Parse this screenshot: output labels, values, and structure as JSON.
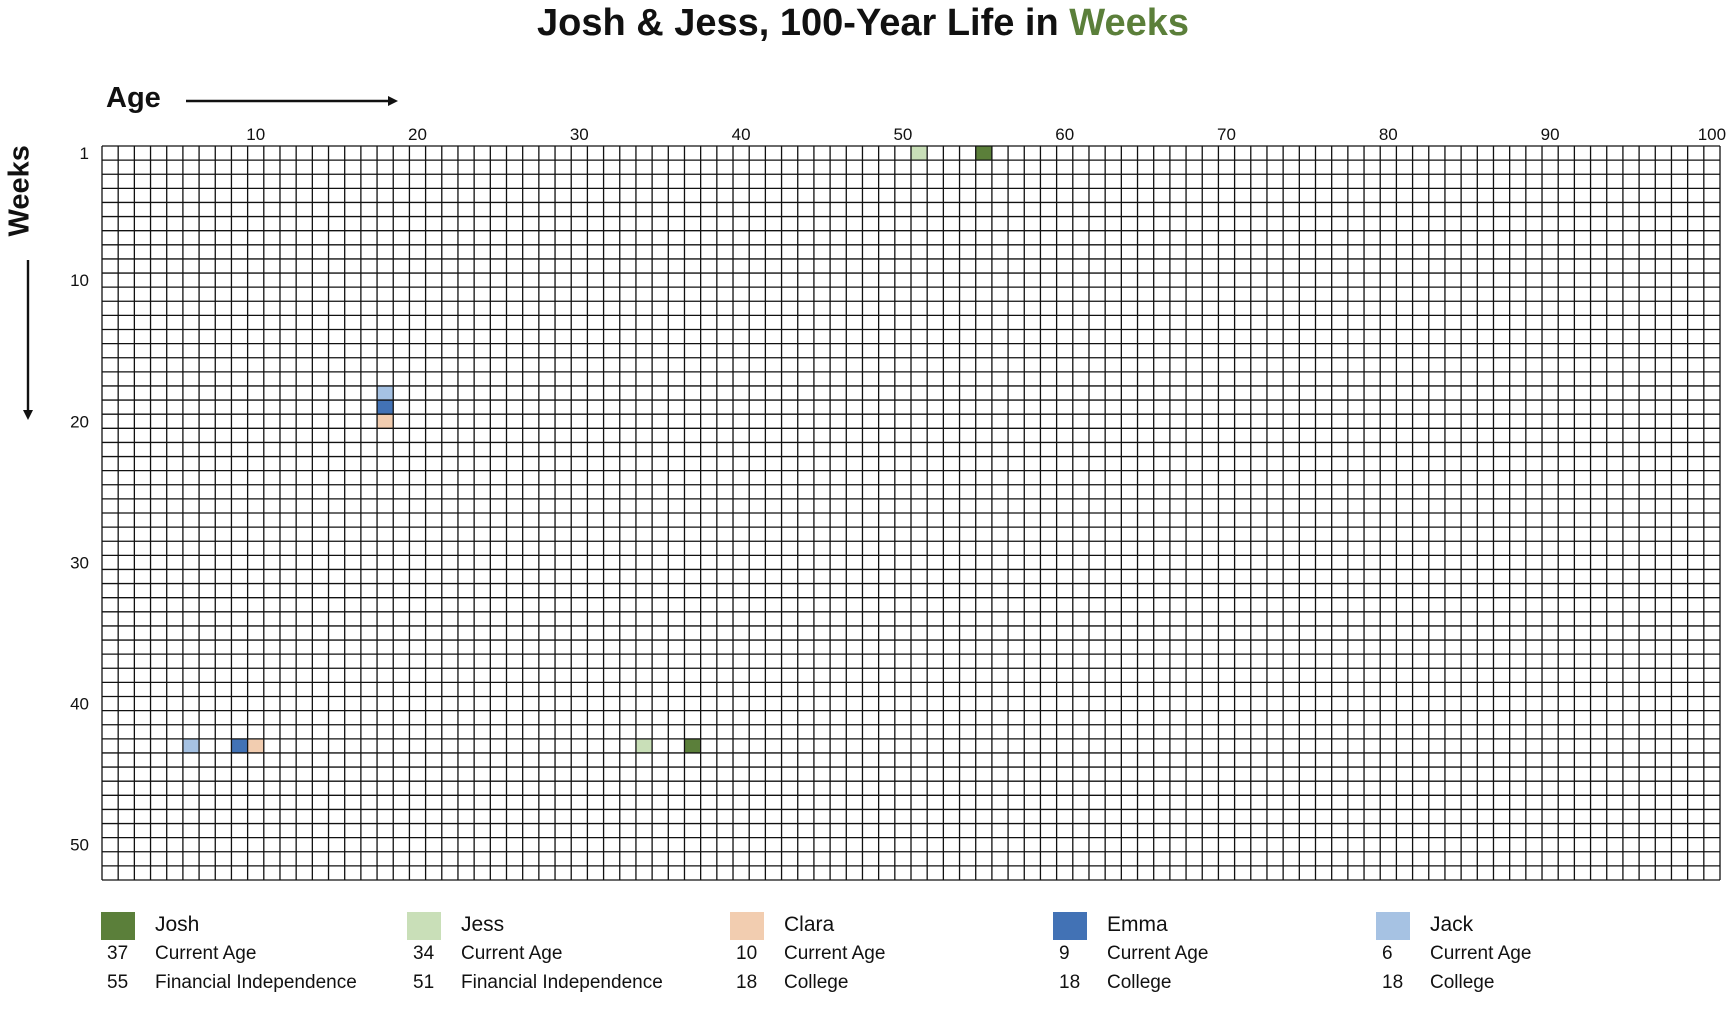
{
  "title": {
    "prefix": "Josh & Jess, 100-Year Life in ",
    "accent": "Weeks"
  },
  "axes": {
    "x_label": "Age",
    "y_label": "Weeks"
  },
  "colors": {
    "josh": "#5b7f3a",
    "jess": "#c9dfb8",
    "clara": "#f2cdb0",
    "emma": "#4272b5",
    "jack": "#a6c2e3",
    "accent": "#5b7f3a"
  },
  "chart_data": {
    "type": "heatmap",
    "title": "Josh & Jess, 100-Year Life in Weeks",
    "xlabel": "Age",
    "ylabel": "Weeks",
    "x_range": [
      1,
      100
    ],
    "y_range": [
      1,
      52
    ],
    "x_ticks": [
      10,
      20,
      30,
      40,
      50,
      60,
      70,
      80,
      90,
      100
    ],
    "y_ticks": [
      1,
      10,
      20,
      30,
      40,
      50
    ],
    "highlighted_cells": [
      {
        "person": "Jess",
        "age": 51,
        "week": 1
      },
      {
        "person": "Josh",
        "age": 55,
        "week": 1
      },
      {
        "person": "Jack",
        "age": 18,
        "week": 18
      },
      {
        "person": "Emma",
        "age": 18,
        "week": 19
      },
      {
        "person": "Clara",
        "age": 18,
        "week": 20
      },
      {
        "person": "Jack",
        "age": 6,
        "week": 43
      },
      {
        "person": "Emma",
        "age": 9,
        "week": 43
      },
      {
        "person": "Clara",
        "age": 10,
        "week": 43
      },
      {
        "person": "Jess",
        "age": 34,
        "week": 43
      },
      {
        "person": "Josh",
        "age": 37,
        "week": 43
      }
    ]
  },
  "legend": [
    {
      "name": "Josh",
      "color": "#5b7f3a",
      "rows": [
        {
          "value": "37",
          "label": "Current Age"
        },
        {
          "value": "55",
          "label": "Financial Independence"
        }
      ]
    },
    {
      "name": "Jess",
      "color": "#c9dfb8",
      "rows": [
        {
          "value": "34",
          "label": "Current Age"
        },
        {
          "value": "51",
          "label": "Financial Independence"
        }
      ]
    },
    {
      "name": "Clara",
      "color": "#f2cdb0",
      "rows": [
        {
          "value": "10",
          "label": "Current Age"
        },
        {
          "value": "18",
          "label": "College"
        }
      ]
    },
    {
      "name": "Emma",
      "color": "#4272b5",
      "rows": [
        {
          "value": "9",
          "label": "Current Age"
        },
        {
          "value": "18",
          "label": "College"
        }
      ]
    },
    {
      "name": "Jack",
      "color": "#a6c2e3",
      "rows": [
        {
          "value": "6",
          "label": "Current Age"
        },
        {
          "value": "18",
          "label": "College"
        }
      ]
    }
  ]
}
